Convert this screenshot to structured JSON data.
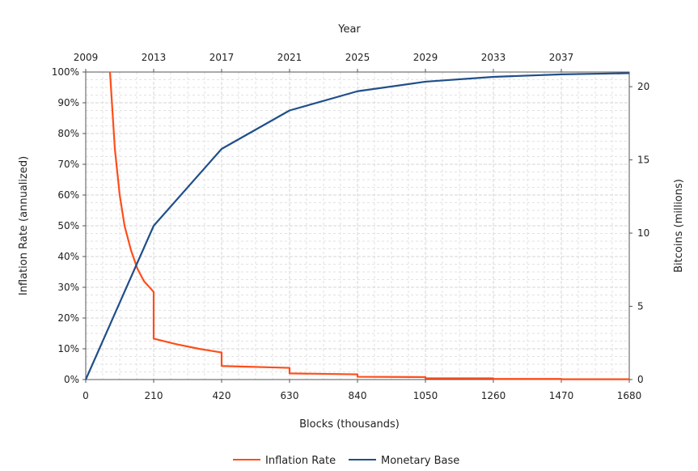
{
  "chart_data": {
    "type": "line",
    "xlabel": "Blocks (thousands)",
    "x2label": "Year",
    "ylabel": "Inflation Rate (annualized)",
    "y2label": "Bitcoins (millions)",
    "xlim": [
      0,
      1680
    ],
    "ylim": [
      0,
      100
    ],
    "y2lim": [
      0,
      21
    ],
    "x_ticks": [
      "0",
      "210",
      "420",
      "630",
      "840",
      "1050",
      "1260",
      "1470",
      "1680"
    ],
    "x2_ticks": [
      "2009",
      "2013",
      "2017",
      "2021",
      "2025",
      "2029",
      "2033",
      "2037"
    ],
    "y_ticks": [
      "0%",
      "10%",
      "20%",
      "30%",
      "40%",
      "50%",
      "60%",
      "70%",
      "80%",
      "90%",
      "100%"
    ],
    "y2_ticks": [
      "0",
      "5",
      "10",
      "15",
      "20"
    ],
    "grid": true,
    "legend_position": "bottom",
    "series": [
      {
        "name": "Inflation Rate",
        "axis": "left",
        "color": "#ff4d1a",
        "x": [
          75,
          90,
          105,
          120,
          140,
          160,
          180,
          210,
          210,
          280,
          350,
          420,
          420,
          630,
          630,
          840,
          840,
          1050,
          1050,
          1260,
          1260,
          1470,
          1470,
          1680
        ],
        "y": [
          100,
          75,
          60,
          50,
          42,
          36,
          32,
          28.5,
          13.3,
          11.5,
          10,
          8.8,
          4.4,
          3.8,
          2.0,
          1.7,
          0.9,
          0.8,
          0.43,
          0.4,
          0.2,
          0.2,
          0.1,
          0.1
        ]
      },
      {
        "name": "Monetary Base",
        "axis": "right",
        "color": "#1f4f8a",
        "x": [
          0,
          210,
          420,
          630,
          840,
          1050,
          1260,
          1470,
          1680
        ],
        "y": [
          0,
          10.5,
          15.75,
          18.375,
          19.6875,
          20.34,
          20.67,
          20.84,
          20.92
        ]
      }
    ]
  }
}
